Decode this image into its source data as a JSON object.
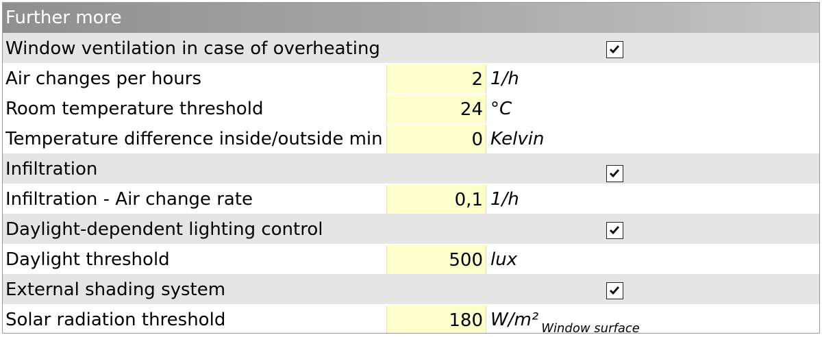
{
  "header": {
    "title": "Further more"
  },
  "sections": {
    "window_ventilation": {
      "label": "Window ventilation in case of overheating",
      "checked": true
    },
    "infiltration": {
      "label": "Infiltration",
      "checked": true
    },
    "daylight_control": {
      "label": "Daylight-dependent lighting control",
      "checked": true
    },
    "external_shading": {
      "label": "External shading system",
      "checked": true
    }
  },
  "params": {
    "air_changes": {
      "label": "Air changes per hours",
      "value": "2",
      "unit": "1/h"
    },
    "room_temp": {
      "label": "Room temperature threshold",
      "value": "24",
      "unit": "°C"
    },
    "temp_diff": {
      "label": "Temperature difference inside/outside min",
      "value": "0",
      "unit": "Kelvin"
    },
    "infiltration_rate": {
      "label": "Infiltration - Air change rate",
      "value": "0,1",
      "unit": "1/h"
    },
    "daylight_threshold": {
      "label": "Daylight threshold",
      "value": "500",
      "unit": "lux"
    },
    "solar_threshold": {
      "label": "Solar radiation threshold",
      "value": "180",
      "unit": "W/m²",
      "unit_sub": "Window surface"
    }
  },
  "icons": {
    "checkbox": "checkmark-icon"
  }
}
